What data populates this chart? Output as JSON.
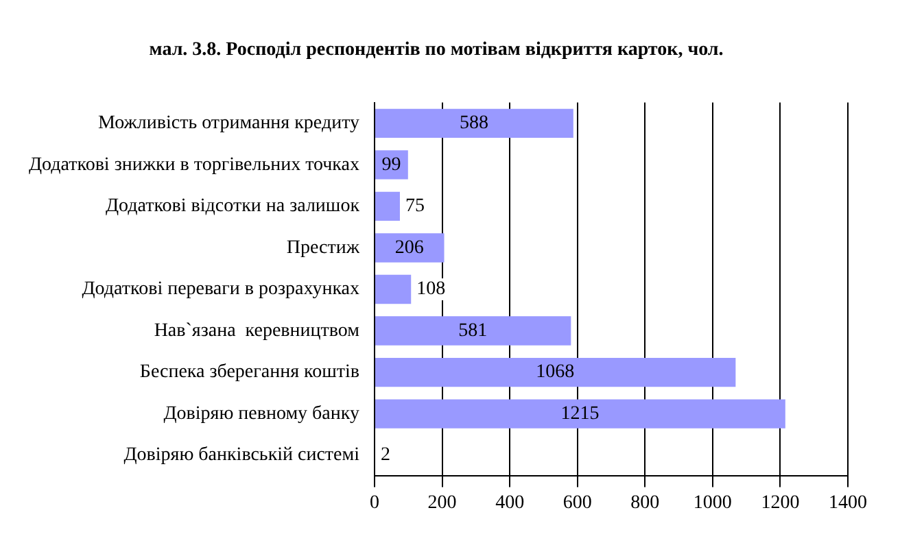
{
  "chart_data": {
    "type": "bar",
    "orientation": "horizontal",
    "title": "мал. 3.8. Росподіл респондентів по мотівам відкриття карток, чол.",
    "categories": [
      "Можливість отримання кредиту",
      "Додаткові знижки в торгівельних точках",
      "Додаткові відсотки на залишок",
      "Престиж",
      "Додаткові переваги в розрахунках",
      "Нав`язана  керевництвом",
      "Беспека зберегання коштів",
      "Довіряю певному банку",
      "Довіряю банківській системі"
    ],
    "values": [
      588,
      99,
      75,
      206,
      108,
      581,
      1068,
      1215,
      2
    ],
    "color": "#9999ff",
    "xlim": [
      0,
      1400
    ],
    "xticks": [
      0,
      200,
      400,
      600,
      800,
      1000,
      1200,
      1400
    ],
    "grid": "x",
    "data_labels": true,
    "legend": false
  }
}
